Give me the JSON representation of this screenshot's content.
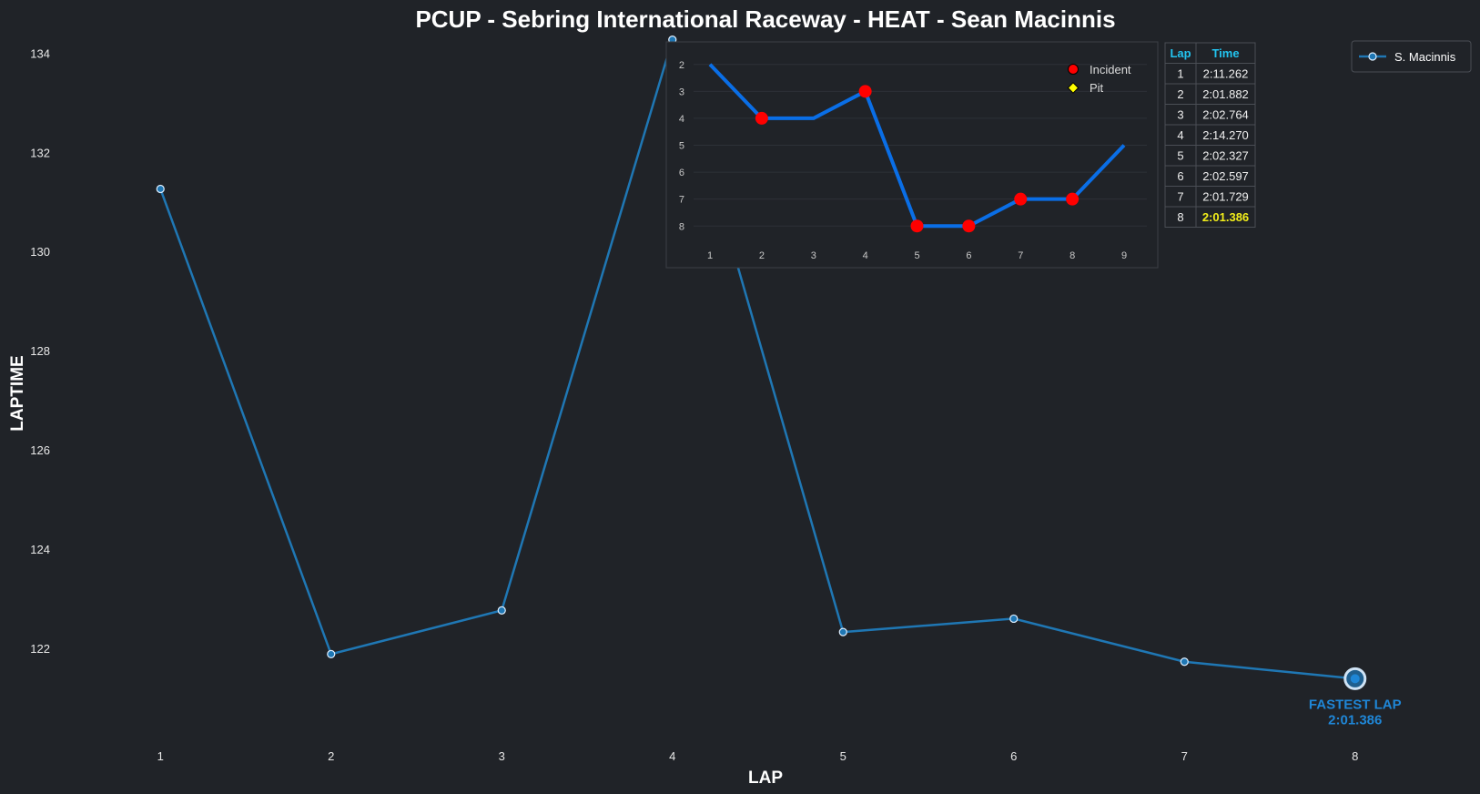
{
  "chart_data": [
    {
      "type": "line",
      "title": "PCUP - Sebring International Raceway - HEAT - Sean Macinnis",
      "xlabel": "LAP",
      "ylabel": "LAPTIME",
      "x": [
        1,
        2,
        3,
        4,
        5,
        6,
        7,
        8
      ],
      "xlim": [
        0.3,
        8.7
      ],
      "ylim": [
        120.2,
        134.3
      ],
      "yticks": [
        122,
        124,
        126,
        128,
        130,
        132,
        134
      ],
      "series": [
        {
          "name": "S. Macinnis",
          "color": "#1f77b4",
          "values": [
            131.262,
            121.882,
            122.764,
            134.27,
            122.327,
            122.597,
            121.729,
            121.386
          ]
        }
      ],
      "legend": "top-right",
      "annotation": {
        "line1": "FASTEST LAP",
        "line2": "2:01.386",
        "lap": 8,
        "value": 121.386,
        "color": "#1f86d6"
      },
      "grid": false
    },
    {
      "type": "line",
      "x": [
        1,
        2,
        3,
        4,
        5,
        6,
        7,
        8,
        9
      ],
      "values": [
        2,
        4,
        4,
        3,
        8,
        8,
        7,
        7,
        5
      ],
      "y_inverted": true,
      "ylim": [
        8.6,
        1.4
      ],
      "yticks": [
        2,
        3,
        4,
        5,
        6,
        7,
        8
      ],
      "color": "#0a6ee6",
      "incident_laps": [
        2,
        4,
        5,
        6,
        7,
        8
      ],
      "legend": {
        "incident": "Incident",
        "pit": "Pit"
      },
      "legend_colors": {
        "incident": "#ff0000",
        "pit": "#ffff00"
      },
      "grid": true
    },
    {
      "type": "table",
      "columns": [
        "Lap",
        "Time"
      ],
      "rows": [
        [
          "1",
          "2:11.262"
        ],
        [
          "2",
          "2:01.882"
        ],
        [
          "3",
          "2:02.764"
        ],
        [
          "4",
          "2:14.270"
        ],
        [
          "5",
          "2:02.327"
        ],
        [
          "6",
          "2:02.597"
        ],
        [
          "7",
          "2:01.729"
        ],
        [
          "8",
          "2:01.386"
        ]
      ],
      "best_row": 7
    }
  ],
  "colors": {
    "background": "#202328",
    "table_header": "#22c4f0",
    "best_time": "#f2ee1a"
  }
}
